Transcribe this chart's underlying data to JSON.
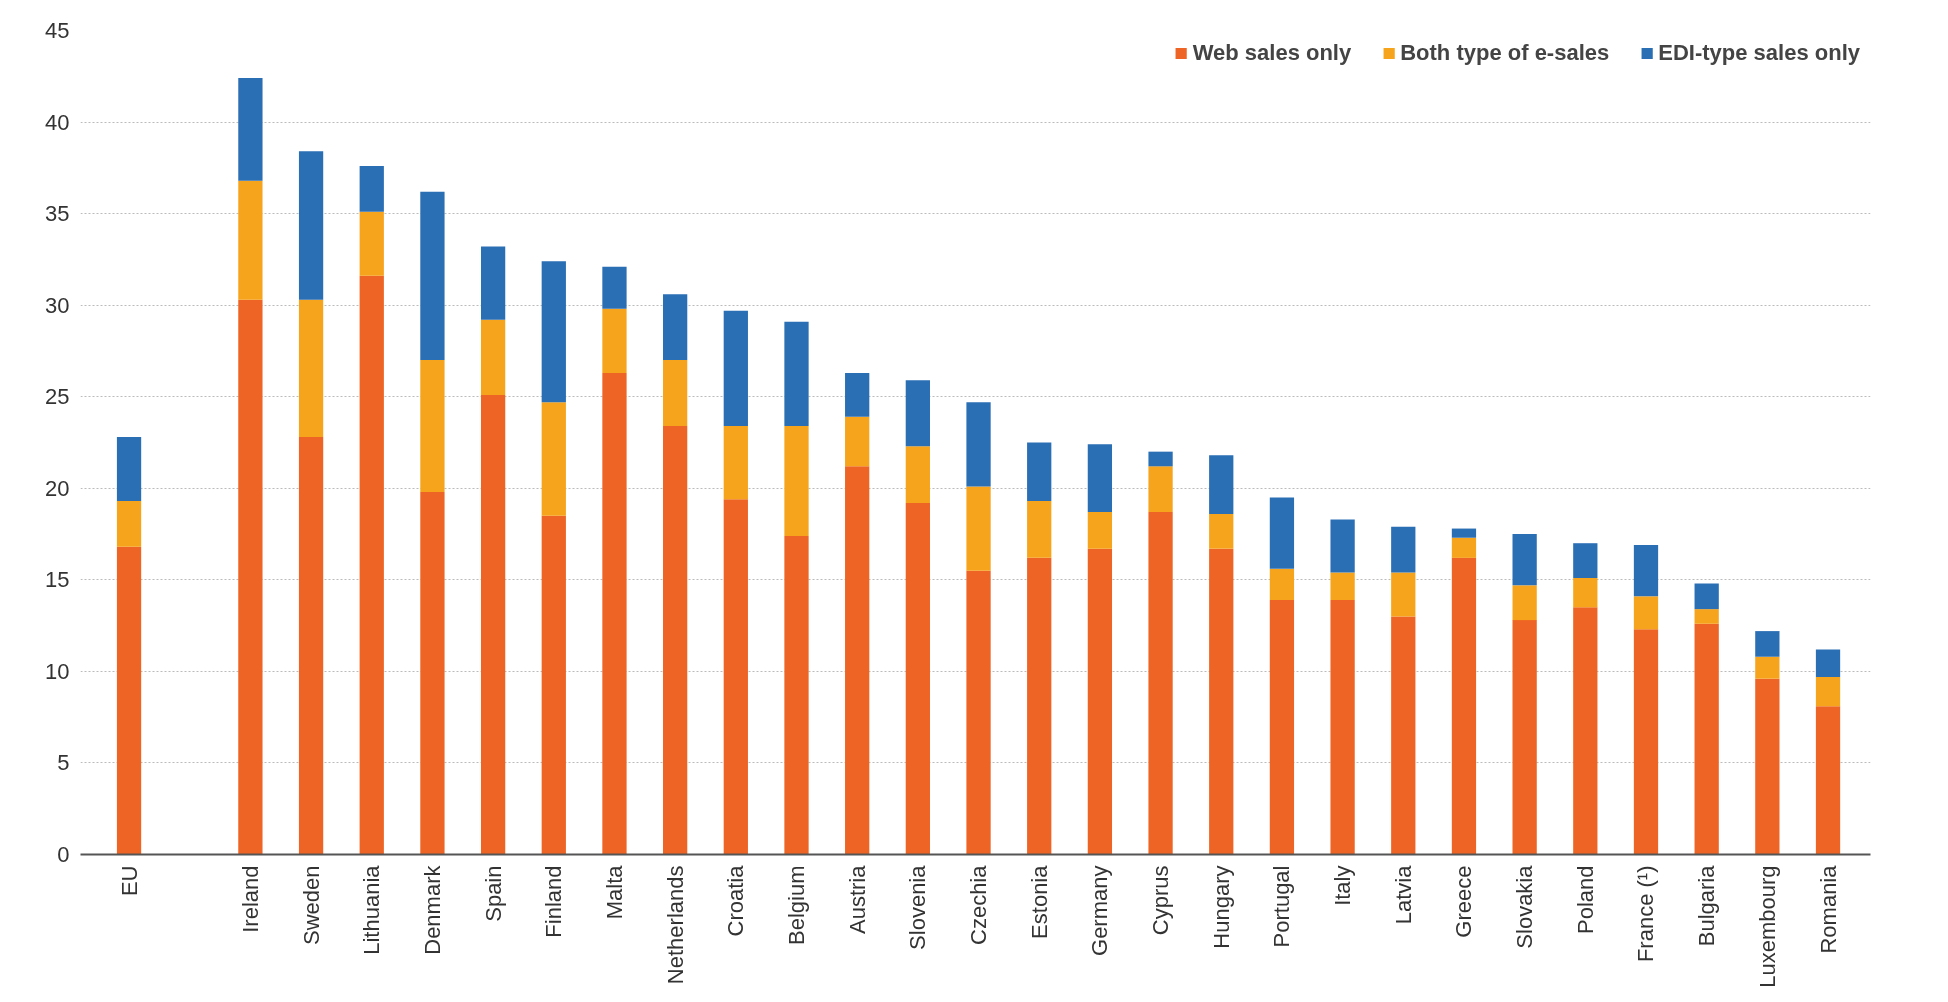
{
  "chart_data": {
    "type": "bar",
    "stacked": true,
    "categories": [
      "EU",
      null,
      "Ireland",
      "Sweden",
      "Lithuania",
      "Denmark",
      "Spain",
      "Finland",
      "Malta",
      "Netherlands",
      "Croatia",
      "Belgium",
      "Austria",
      "Slovenia",
      "Czechia",
      "Estonia",
      "Germany",
      "Cyprus",
      "Hungary",
      "Portugal",
      "Italy",
      "Latvia",
      "Greece",
      "Slovakia",
      "Poland",
      "France (¹)",
      "Bulgaria",
      "Luxembourg",
      "Romania"
    ],
    "series": [
      {
        "name": "Web sales only",
        "color": "#ee6424",
        "values": [
          16.8,
          null,
          30.3,
          22.8,
          31.6,
          19.8,
          25.1,
          18.5,
          26.3,
          23.4,
          19.4,
          17.4,
          21.2,
          19.2,
          15.5,
          16.2,
          16.7,
          18.7,
          16.7,
          13.9,
          13.9,
          13.0,
          16.2,
          12.8,
          13.5,
          12.3,
          12.6,
          9.6,
          8.1
        ]
      },
      {
        "name": "Both type of e-sales",
        "color": "#f7a41d",
        "values": [
          2.5,
          null,
          6.5,
          7.5,
          3.5,
          7.2,
          4.1,
          6.2,
          3.5,
          3.6,
          4.0,
          6.0,
          2.7,
          3.1,
          4.6,
          3.1,
          2.0,
          2.5,
          1.9,
          1.7,
          1.5,
          2.4,
          1.1,
          1.9,
          1.6,
          1.8,
          0.8,
          1.2,
          1.6
        ]
      },
      {
        "name": "EDI-type sales only",
        "color": "#2a6eb4",
        "values": [
          3.5,
          null,
          5.6,
          8.1,
          2.5,
          9.2,
          4.0,
          7.7,
          2.3,
          3.6,
          6.3,
          5.7,
          2.4,
          3.6,
          4.6,
          3.2,
          3.7,
          0.8,
          3.2,
          3.9,
          2.9,
          2.5,
          0.5,
          2.8,
          1.9,
          2.8,
          1.4,
          1.4,
          1.5
        ]
      }
    ],
    "ylim": [
      0,
      45
    ],
    "yticks": [
      0,
      5,
      10,
      15,
      20,
      25,
      30,
      35,
      40,
      45
    ],
    "grid": "y",
    "legend": "top right"
  }
}
